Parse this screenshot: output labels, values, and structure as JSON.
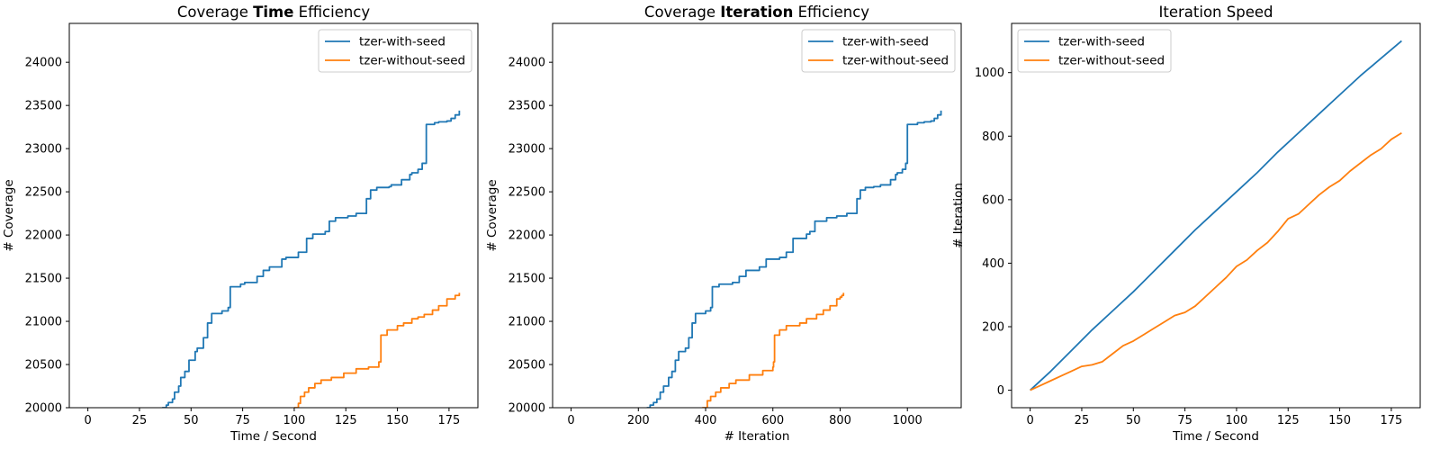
{
  "colors": {
    "series1": "#1f77b4",
    "series2": "#ff7f0e",
    "axes": "#000000",
    "background": "#ffffff"
  },
  "chart_data": [
    {
      "type": "line",
      "title_parts": [
        {
          "text": "Coverage ",
          "bold": false
        },
        {
          "text": "Time",
          "bold": true
        },
        {
          "text": " Efficiency",
          "bold": false
        }
      ],
      "xlabel": "Time / Second",
      "ylabel": "# Coverage",
      "xlim": [
        -9,
        189
      ],
      "ylim": [
        20000,
        24450
      ],
      "xticks": [
        0,
        25,
        50,
        75,
        100,
        125,
        150,
        175
      ],
      "yticks": [
        20000,
        20500,
        21000,
        21500,
        22000,
        22500,
        23000,
        23500,
        24000
      ],
      "grid": false,
      "legend_position": "top-right",
      "series": [
        {
          "name": "tzer-with-seed",
          "x": [
            36,
            38,
            39,
            41,
            42,
            44,
            45,
            47,
            49,
            52,
            53,
            56,
            58,
            60,
            65,
            68,
            69,
            74,
            76,
            82,
            85,
            88,
            94,
            96,
            102,
            106,
            109,
            115,
            117,
            120,
            126,
            130,
            135,
            137,
            140,
            146,
            147,
            152,
            156,
            157,
            160,
            162,
            164,
            168,
            170,
            172,
            174,
            176,
            178,
            180
          ],
          "y": [
            20000,
            20030,
            20060,
            20100,
            20180,
            20250,
            20350,
            20420,
            20550,
            20650,
            20690,
            20810,
            20980,
            21090,
            21120,
            21160,
            21400,
            21430,
            21450,
            21520,
            21590,
            21630,
            21720,
            21740,
            21800,
            21960,
            22010,
            22040,
            22160,
            22200,
            22220,
            22250,
            22420,
            22520,
            22550,
            22560,
            22580,
            22640,
            22700,
            22720,
            22760,
            22830,
            23280,
            23300,
            23310,
            23310,
            23320,
            23350,
            23390,
            23440
          ]
        },
        {
          "name": "tzer-without-seed",
          "x": [
            100,
            102,
            103,
            105,
            107,
            110,
            113,
            118,
            124,
            130,
            136,
            141,
            142,
            145,
            150,
            153,
            157,
            160,
            163,
            167,
            170,
            174,
            178,
            180
          ],
          "y": [
            20000,
            20050,
            20130,
            20180,
            20230,
            20280,
            20320,
            20350,
            20400,
            20450,
            20470,
            20530,
            20840,
            20900,
            20950,
            20980,
            21030,
            21050,
            21080,
            21130,
            21180,
            21260,
            21300,
            21330
          ]
        }
      ]
    },
    {
      "type": "line",
      "title_parts": [
        {
          "text": "Coverage ",
          "bold": false
        },
        {
          "text": "Iteration",
          "bold": true
        },
        {
          "text": " Efficiency",
          "bold": false
        }
      ],
      "xlabel": "# Iteration",
      "ylabel": "# Coverage",
      "xlim": [
        -55,
        1160
      ],
      "ylim": [
        20000,
        24450
      ],
      "xticks": [
        0,
        200,
        400,
        600,
        800,
        1000
      ],
      "yticks": [
        20000,
        20500,
        21000,
        21500,
        22000,
        22500,
        23000,
        23500,
        24000
      ],
      "grid": false,
      "legend_position": "top-right",
      "series": [
        {
          "name": "tzer-with-seed",
          "x": [
            225,
            235,
            245,
            255,
            265,
            275,
            290,
            300,
            310,
            320,
            340,
            350,
            360,
            370,
            400,
            415,
            420,
            440,
            480,
            500,
            520,
            560,
            580,
            620,
            640,
            660,
            700,
            710,
            725,
            760,
            790,
            820,
            850,
            860,
            875,
            900,
            920,
            950,
            965,
            970,
            985,
            995,
            1000,
            1030,
            1050,
            1060,
            1070,
            1080,
            1090,
            1100
          ],
          "y": [
            20000,
            20030,
            20060,
            20100,
            20180,
            20250,
            20350,
            20420,
            20550,
            20650,
            20690,
            20810,
            20980,
            21090,
            21120,
            21160,
            21400,
            21430,
            21450,
            21520,
            21590,
            21630,
            21720,
            21740,
            21800,
            21960,
            22010,
            22040,
            22160,
            22200,
            22220,
            22250,
            22420,
            22520,
            22550,
            22560,
            22580,
            22640,
            22700,
            22720,
            22760,
            22830,
            23280,
            23300,
            23310,
            23310,
            23320,
            23350,
            23390,
            23440
          ]
        },
        {
          "name": "tzer-without-seed",
          "x": [
            390,
            405,
            415,
            430,
            445,
            470,
            490,
            530,
            570,
            600,
            602,
            605,
            620,
            640,
            680,
            700,
            730,
            750,
            770,
            790,
            800,
            805,
            810
          ],
          "y": [
            20000,
            20080,
            20130,
            20180,
            20230,
            20280,
            20320,
            20380,
            20430,
            20470,
            20530,
            20840,
            20900,
            20950,
            20980,
            21030,
            21080,
            21130,
            21180,
            21260,
            21280,
            21300,
            21330
          ]
        }
      ]
    },
    {
      "type": "line",
      "title_parts": [
        {
          "text": "Iteration Speed",
          "bold": false
        }
      ],
      "xlabel": "Time / Second",
      "ylabel": "# Iteration",
      "xlim": [
        -9,
        189
      ],
      "ylim": [
        -55,
        1155
      ],
      "xticks": [
        0,
        25,
        50,
        75,
        100,
        125,
        150,
        175
      ],
      "yticks": [
        0,
        200,
        400,
        600,
        800,
        1000
      ],
      "grid": false,
      "legend_position": "top-left",
      "series": [
        {
          "name": "tzer-with-seed",
          "x": [
            0,
            10,
            20,
            30,
            40,
            50,
            60,
            70,
            80,
            90,
            100,
            110,
            120,
            130,
            140,
            150,
            160,
            170,
            180
          ],
          "y": [
            0,
            60,
            125,
            190,
            250,
            310,
            375,
            440,
            505,
            565,
            625,
            685,
            750,
            810,
            870,
            930,
            990,
            1045,
            1100
          ]
        },
        {
          "name": "tzer-without-seed",
          "x": [
            0,
            5,
            10,
            15,
            20,
            25,
            30,
            35,
            40,
            45,
            50,
            55,
            60,
            65,
            70,
            75,
            80,
            85,
            90,
            95,
            100,
            105,
            110,
            115,
            120,
            125,
            130,
            135,
            140,
            145,
            150,
            155,
            160,
            165,
            170,
            175,
            180
          ],
          "y": [
            0,
            15,
            30,
            45,
            60,
            75,
            80,
            90,
            115,
            140,
            155,
            175,
            195,
            215,
            235,
            245,
            265,
            295,
            325,
            355,
            390,
            410,
            440,
            465,
            500,
            540,
            555,
            585,
            615,
            640,
            660,
            690,
            715,
            740,
            760,
            790,
            810
          ]
        }
      ]
    }
  ]
}
